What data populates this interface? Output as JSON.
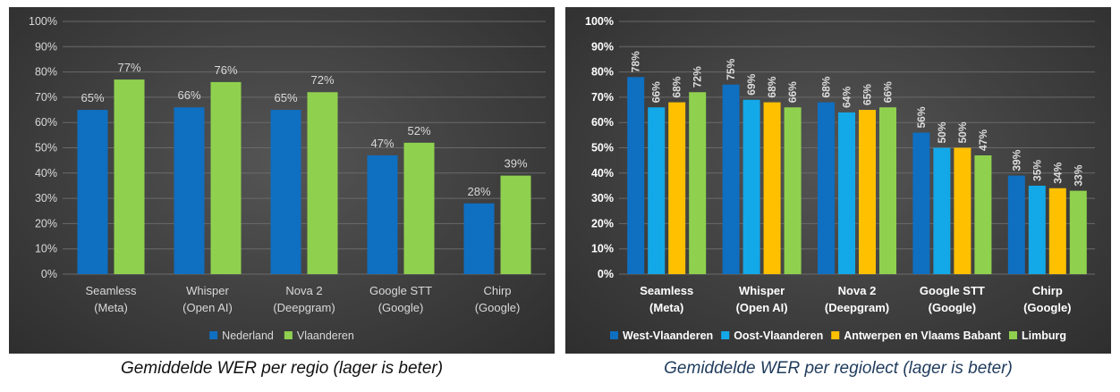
{
  "colors": {
    "nederland": "#0f6fc1",
    "vlaanderen": "#8fd14f",
    "west_vlaanderen": "#0f6fc1",
    "oost_vlaanderen": "#13a8e8",
    "antwerpen": "#ffc000",
    "limburg": "#8fd14f",
    "grid": "#6a6a6a",
    "text": "#d9d9d9"
  },
  "captions": {
    "left": "Gemiddelde WER per regio (lager is beter)",
    "right": "Gemiddelde WER per regiolect (lager is beter)"
  },
  "chart_data": [
    {
      "type": "bar",
      "title": "",
      "categories": [
        [
          "Seamless",
          "(Meta)"
        ],
        [
          "Whisper",
          "(Open AI)"
        ],
        [
          "Nova 2",
          "(Deepgram)"
        ],
        [
          "Google STT",
          "(Google)"
        ],
        [
          "Chirp",
          "(Google)"
        ]
      ],
      "series": [
        {
          "name": "Nederland",
          "values": [
            65,
            66,
            65,
            47,
            28
          ]
        },
        {
          "name": "Vlaanderen",
          "values": [
            77,
            76,
            72,
            52,
            39
          ]
        }
      ],
      "ylim": [
        0,
        100
      ],
      "yticks": [
        "0%",
        "10%",
        "20%",
        "30%",
        "40%",
        "50%",
        "60%",
        "70%",
        "80%",
        "90%",
        "100%"
      ],
      "data_label_suffix": "%",
      "legend_position": "bottom",
      "grid": true,
      "label_style": "normal"
    },
    {
      "type": "bar",
      "title": "",
      "categories": [
        [
          "Seamless",
          "(Meta)"
        ],
        [
          "Whisper",
          "(Open AI)"
        ],
        [
          "Nova 2",
          "(Deepgram)"
        ],
        [
          "Google STT",
          "(Google)"
        ],
        [
          "Chirp",
          "(Google)"
        ]
      ],
      "series": [
        {
          "name": "West-Vlaanderen",
          "values": [
            78,
            75,
            68,
            56,
            39
          ]
        },
        {
          "name": "Oost-Vlaanderen",
          "values": [
            66,
            69,
            64,
            50,
            35
          ]
        },
        {
          "name": "Antwerpen en Vlaams Babant",
          "values": [
            68,
            68,
            65,
            50,
            34
          ]
        },
        {
          "name": "Limburg",
          "values": [
            72,
            66,
            66,
            47,
            33
          ]
        }
      ],
      "ylim": [
        0,
        100
      ],
      "yticks": [
        "0%",
        "10%",
        "20%",
        "30%",
        "40%",
        "50%",
        "60%",
        "70%",
        "80%",
        "90%",
        "100%"
      ],
      "data_label_suffix": "%",
      "legend_position": "bottom",
      "grid": true,
      "label_style": "bold-rotated"
    }
  ]
}
